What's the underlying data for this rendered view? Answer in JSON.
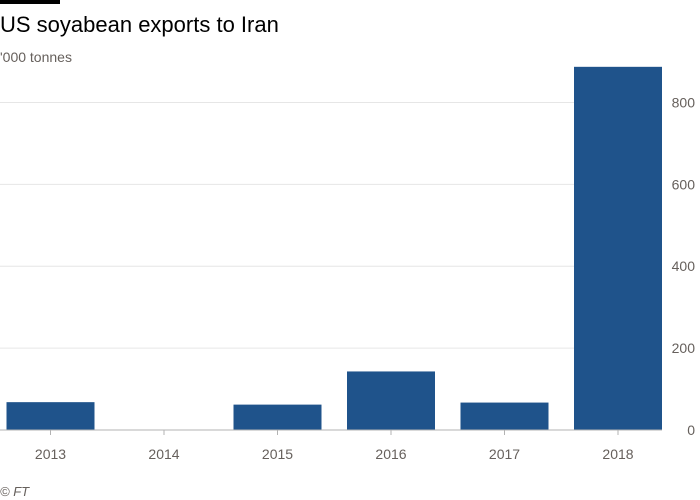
{
  "header": {
    "title": "US soyabean exports to Iran",
    "subtitle": "'000 tonnes"
  },
  "footer": {
    "source": "© FT"
  },
  "colors": {
    "bar": "#1f538b",
    "grid": "#e6e6e6",
    "axis": "#b3b3b3",
    "text": "#66605c"
  },
  "chart_data": {
    "type": "bar",
    "title": "US soyabean exports to Iran",
    "subtitle": "'000 tonnes",
    "xlabel": "",
    "ylabel": "",
    "categories": [
      "2013",
      "2014",
      "2015",
      "2016",
      "2017",
      "2018"
    ],
    "values": [
      68,
      0,
      62,
      143,
      67,
      887
    ],
    "ylim": [
      0,
      900
    ],
    "yticks": [
      0,
      200,
      400,
      600,
      800
    ],
    "grid": true,
    "y_axis_side": "right"
  }
}
